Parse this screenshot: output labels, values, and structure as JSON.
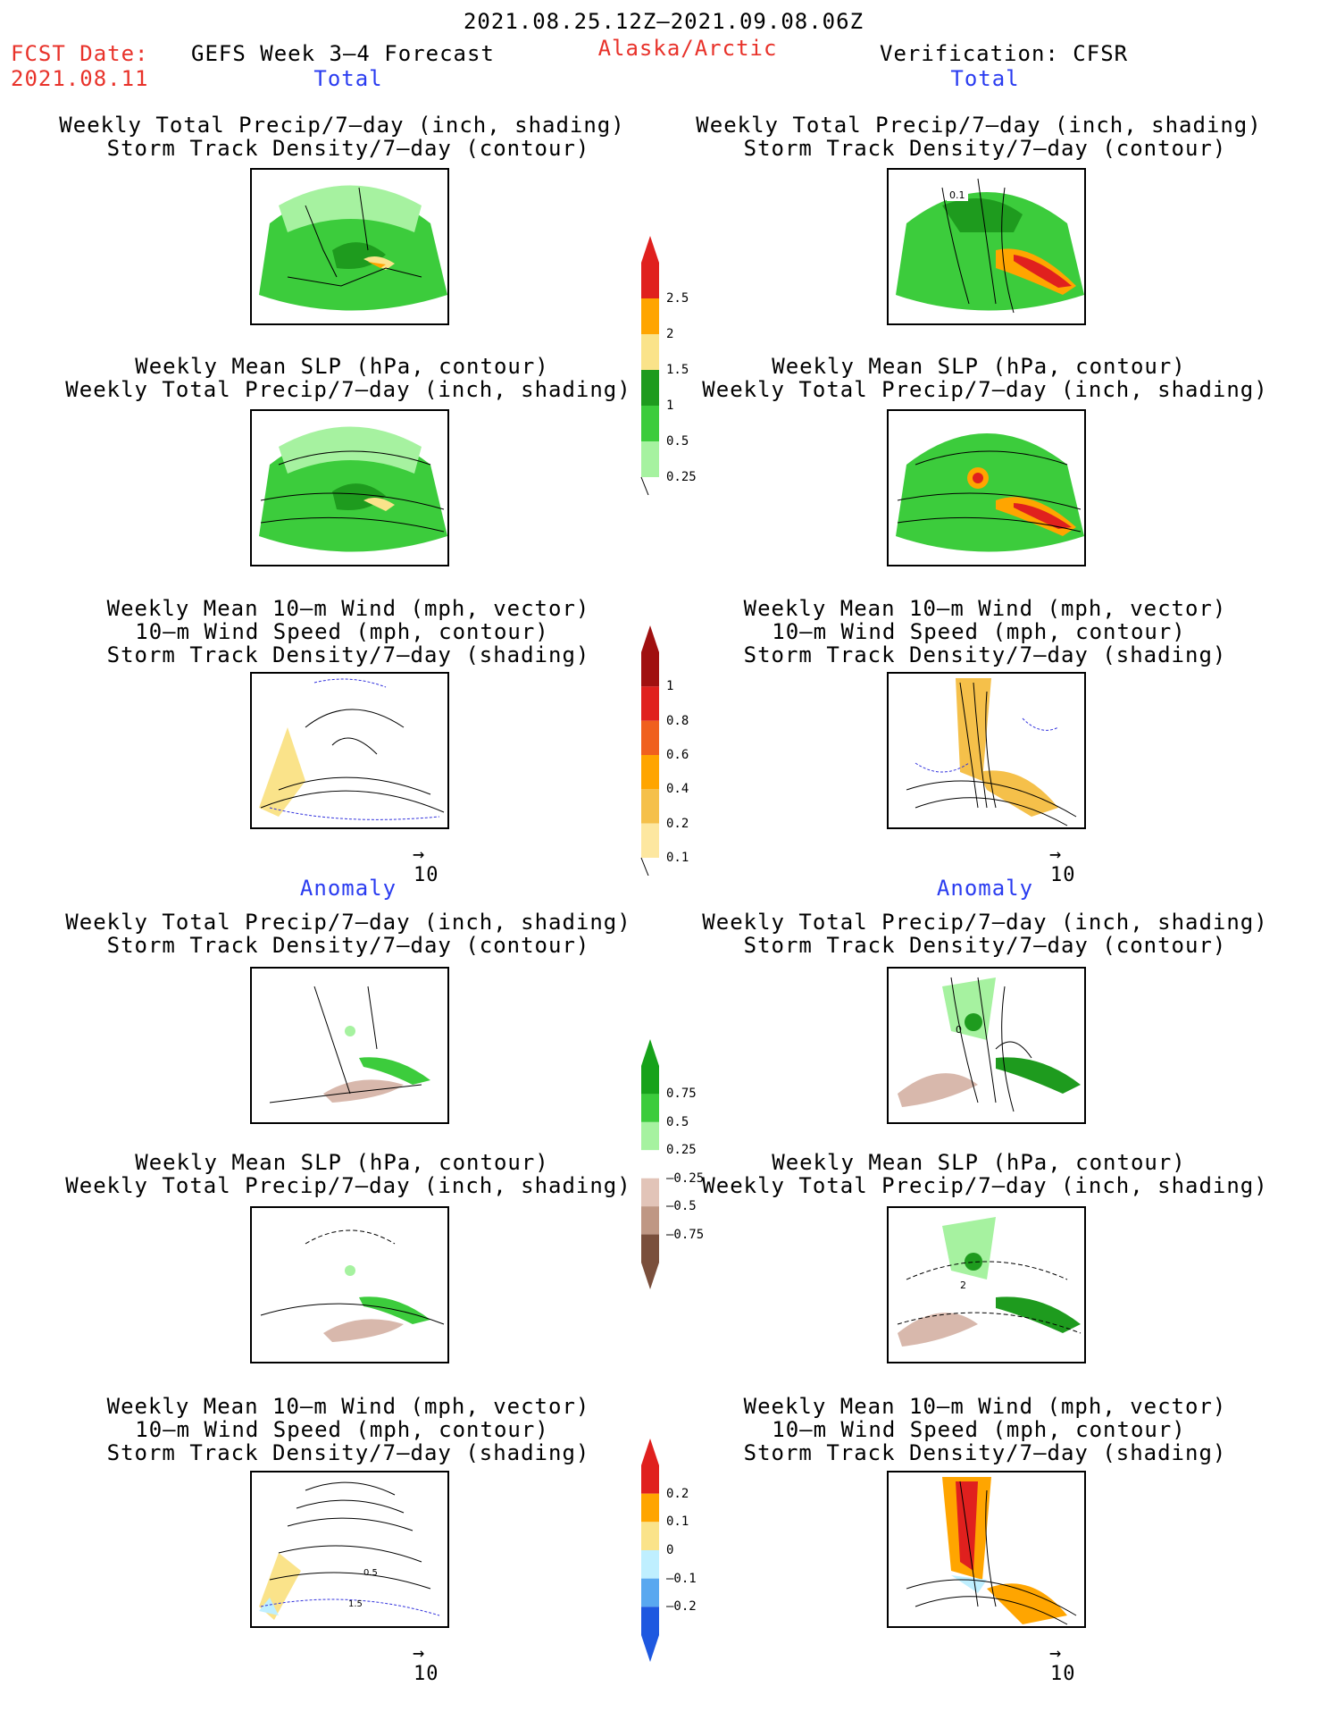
{
  "header": {
    "period": "2021.08.25.12Z–2021.09.08.06Z",
    "fcst_label": "FCST Date:",
    "fcst_date": "2021.08.11",
    "product": "GEFS Week 3–4 Forecast",
    "region": "Alaska/Arctic",
    "verification": "Verification: CFSR"
  },
  "sections": {
    "total": "Total",
    "anomaly": "Anomaly"
  },
  "titles": {
    "precip_storm": [
      "Weekly Total Precip/7–day (inch, shading)",
      "Storm Track Density/7–day (contour)"
    ],
    "slp_precip": [
      "Weekly Mean SLP (hPa, contour)",
      "Weekly Total Precip/7–day (inch, shading)"
    ],
    "wind_storm": [
      "Weekly Mean 10–m Wind (mph, vector)",
      "10–m Wind Speed (mph, contour)",
      "Storm Track Density/7–day (shading)"
    ]
  },
  "vector_ref": "10",
  "map_annotations": {
    "total_precip_verif": "0.1",
    "anom_precip_verif": "0",
    "anom_slp_verif": "2",
    "anom_wind_fcst_a": "1.5",
    "anom_wind_fcst_b": "0.5"
  },
  "colorbars": {
    "precip_total": {
      "labels": [
        "2.5",
        "2",
        "1.5",
        "1",
        "0.5",
        "0.25"
      ],
      "colors": [
        "#e0201e",
        "#ffa500",
        "#fae38a",
        "#1e9b1e",
        "#3ccc3c",
        "#a6f2a0"
      ]
    },
    "storm_total": {
      "labels": [
        "1",
        "0.8",
        "0.6",
        "0.4",
        "0.2",
        "0.1"
      ],
      "colors": [
        "#a01010",
        "#e0201e",
        "#f0601e",
        "#ffa500",
        "#f5c04a",
        "#fde7a0"
      ]
    },
    "precip_anom": {
      "labels": [
        "0.75",
        "0.5",
        "0.25",
        "–0.25",
        "–0.5",
        "–0.75"
      ],
      "colors": [
        "#17a21a",
        "#3ccc3c",
        "#a6f2a0",
        "#ffffff",
        "#e2c4b8",
        "#bf9784",
        "#7a4f3c"
      ]
    },
    "storm_anom": {
      "labels": [
        "0.2",
        "0.1",
        "0",
        "–0.1",
        "–0.2"
      ],
      "colors": [
        "#e0201e",
        "#ffa500",
        "#fae38a",
        "#bfefff",
        "#59a8f0",
        "#1e58e0"
      ]
    }
  },
  "legend_colors": {
    "map_green": "#3ccc3c",
    "map_light_green": "#a6f2a0",
    "map_dark_green": "#1e9b1e",
    "map_brown": "#d8b8ac",
    "vector_blue": "#3333dd"
  }
}
